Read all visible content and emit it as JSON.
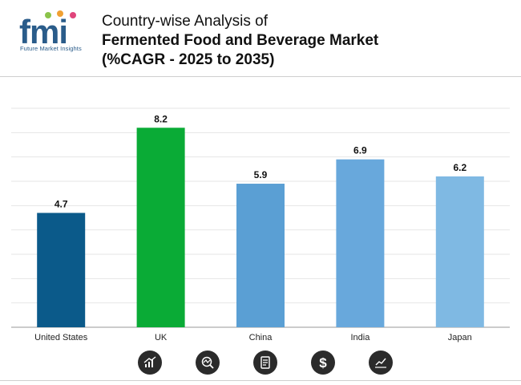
{
  "brand": {
    "logo_letters": "fmi",
    "tagline": "Future Market Insights"
  },
  "header": {
    "title_line1": "Country-wise Analysis of",
    "title_line2": "Fermented Food and Beverage Market",
    "title_line3": "(%CAGR - 2025 to 2035)"
  },
  "colors": {
    "United States": "#0b5a8a",
    "UK": "#0aab36",
    "China": "#5a9fd4",
    "India": "#68a8dc",
    "Japan": "#7fb9e3"
  },
  "chart_data": {
    "type": "bar",
    "title": "Country-wise Analysis of Fermented Food and Beverage Market (%CAGR - 2025 to 2035)",
    "categories": [
      "United States",
      "UK",
      "China",
      "India",
      "Japan"
    ],
    "values": [
      4.7,
      8.2,
      5.9,
      6.9,
      6.2
    ],
    "xlabel": "",
    "ylabel": "",
    "ylim": [
      0,
      9
    ],
    "grid": true
  },
  "footer_icons": [
    "growth-chart-icon",
    "magnifier-trend-icon",
    "report-document-icon",
    "dollar-icon",
    "line-trend-icon"
  ]
}
